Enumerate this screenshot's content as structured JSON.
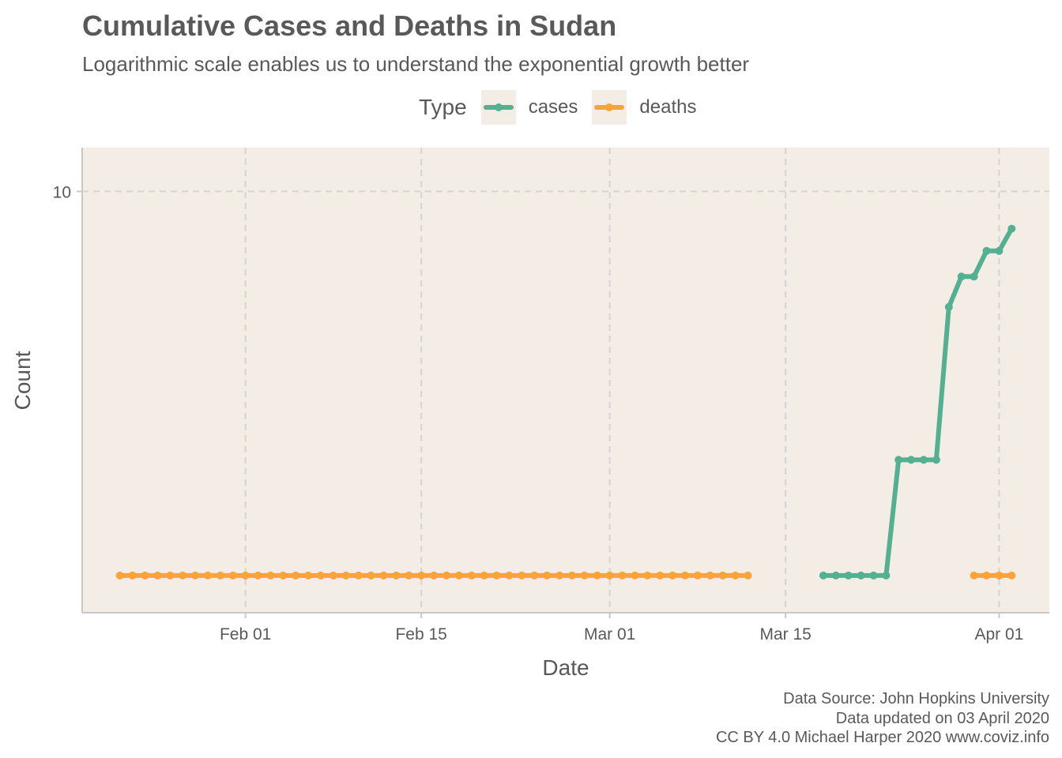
{
  "title": "Cumulative Cases and Deaths in Sudan",
  "subtitle": "Logarithmic scale enables us to understand the exponential growth better",
  "legend": {
    "title": "Type",
    "items": [
      {
        "label": "cases",
        "color": "#53b090"
      },
      {
        "label": "deaths",
        "color": "#f9a43a"
      }
    ]
  },
  "caption": {
    "line1": "Data Source: John Hopkins University",
    "line2": "Data updated on 03 April 2020",
    "line3": "CC BY 4.0 Michael Harper 2020 www.coviz.info"
  },
  "chart_data": {
    "type": "line",
    "xlabel": "Date",
    "ylabel": "Count",
    "y_scale": "log",
    "xlim": [
      "2020-01-19",
      "2020-04-05"
    ],
    "ylim": [
      0.8,
      13
    ],
    "x_ticks": [
      {
        "date": "2020-02-01",
        "label": "Feb 01"
      },
      {
        "date": "2020-02-15",
        "label": "Feb 15"
      },
      {
        "date": "2020-03-01",
        "label": "Mar 01"
      },
      {
        "date": "2020-03-15",
        "label": "Mar 15"
      },
      {
        "date": "2020-04-01",
        "label": "Apr 01"
      }
    ],
    "y_ticks": [
      {
        "value": 10,
        "label": "10"
      }
    ],
    "grid": true,
    "legend_position": "top",
    "background": "#f3ede6",
    "series": [
      {
        "name": "cases",
        "color": "#53b090",
        "segments": [
          [
            [
              "2020-03-18",
              1
            ],
            [
              "2020-03-19",
              1
            ],
            [
              "2020-03-20",
              1
            ],
            [
              "2020-03-21",
              1
            ],
            [
              "2020-03-22",
              1
            ],
            [
              "2020-03-23",
              1
            ],
            [
              "2020-03-24",
              2
            ],
            [
              "2020-03-25",
              2
            ],
            [
              "2020-03-26",
              2
            ],
            [
              "2020-03-27",
              2
            ],
            [
              "2020-03-28",
              5
            ],
            [
              "2020-03-29",
              6
            ],
            [
              "2020-03-30",
              6
            ],
            [
              "2020-03-31",
              7
            ],
            [
              "2020-04-01",
              7
            ],
            [
              "2020-04-02",
              8
            ]
          ]
        ]
      },
      {
        "name": "deaths",
        "color": "#f9a43a",
        "segments": [
          [
            [
              "2020-01-22",
              1
            ],
            [
              "2020-01-23",
              1
            ],
            [
              "2020-01-24",
              1
            ],
            [
              "2020-01-25",
              1
            ],
            [
              "2020-01-26",
              1
            ],
            [
              "2020-01-27",
              1
            ],
            [
              "2020-01-28",
              1
            ],
            [
              "2020-01-29",
              1
            ],
            [
              "2020-01-30",
              1
            ],
            [
              "2020-01-31",
              1
            ],
            [
              "2020-02-01",
              1
            ],
            [
              "2020-02-02",
              1
            ],
            [
              "2020-02-03",
              1
            ],
            [
              "2020-02-04",
              1
            ],
            [
              "2020-02-05",
              1
            ],
            [
              "2020-02-06",
              1
            ],
            [
              "2020-02-07",
              1
            ],
            [
              "2020-02-08",
              1
            ],
            [
              "2020-02-09",
              1
            ],
            [
              "2020-02-10",
              1
            ],
            [
              "2020-02-11",
              1
            ],
            [
              "2020-02-12",
              1
            ],
            [
              "2020-02-13",
              1
            ],
            [
              "2020-02-14",
              1
            ],
            [
              "2020-02-15",
              1
            ],
            [
              "2020-02-16",
              1
            ],
            [
              "2020-02-17",
              1
            ],
            [
              "2020-02-18",
              1
            ],
            [
              "2020-02-19",
              1
            ],
            [
              "2020-02-20",
              1
            ],
            [
              "2020-02-21",
              1
            ],
            [
              "2020-02-22",
              1
            ],
            [
              "2020-02-23",
              1
            ],
            [
              "2020-02-24",
              1
            ],
            [
              "2020-02-25",
              1
            ],
            [
              "2020-02-26",
              1
            ],
            [
              "2020-02-27",
              1
            ],
            [
              "2020-02-28",
              1
            ],
            [
              "2020-02-29",
              1
            ],
            [
              "2020-03-01",
              1
            ],
            [
              "2020-03-02",
              1
            ],
            [
              "2020-03-03",
              1
            ],
            [
              "2020-03-04",
              1
            ],
            [
              "2020-03-05",
              1
            ],
            [
              "2020-03-06",
              1
            ],
            [
              "2020-03-07",
              1
            ],
            [
              "2020-03-08",
              1
            ],
            [
              "2020-03-09",
              1
            ],
            [
              "2020-03-10",
              1
            ],
            [
              "2020-03-11",
              1
            ],
            [
              "2020-03-12",
              1
            ]
          ],
          [
            [
              "2020-03-30",
              1
            ],
            [
              "2020-03-31",
              1
            ],
            [
              "2020-04-01",
              1
            ],
            [
              "2020-04-02",
              1
            ]
          ]
        ]
      }
    ]
  }
}
